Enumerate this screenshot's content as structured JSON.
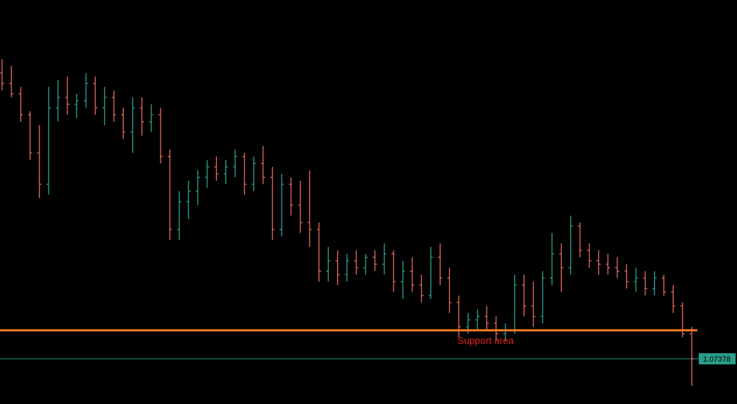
{
  "chart_data": {
    "type": "ohlc",
    "up_color": "#2a9d8a",
    "down_color": "#e0675c",
    "ylim": [
      1.0725,
      1.0841
    ],
    "open": [
      1.082,
      1.0817,
      1.0814,
      1.0808,
      1.0797,
      1.0788,
      1.081,
      1.0813,
      1.0811,
      1.0812,
      1.0817,
      1.081,
      1.0813,
      1.0808,
      1.0803,
      1.081,
      1.0806,
      1.0808,
      1.0796,
      1.0775,
      1.0783,
      1.0786,
      1.079,
      1.0793,
      1.0791,
      1.0793,
      1.0796,
      1.0788,
      1.0794,
      1.079,
      1.0775,
      1.0788,
      1.0782,
      1.0777,
      1.0775,
      1.0763,
      1.0766,
      1.0762,
      1.0766,
      1.0764,
      1.0767,
      1.0765,
      1.0768,
      1.076,
      1.0763,
      1.0759,
      1.0756,
      1.0767,
      1.0761,
      1.0754,
      1.0747,
      1.0749,
      1.075,
      1.0748,
      1.0745,
      1.0746,
      1.0759,
      1.0753,
      1.075,
      1.0761,
      1.0768,
      1.0764,
      1.0776,
      1.0769,
      1.0766,
      1.0765,
      1.0764,
      1.0763,
      1.076,
      1.0761,
      1.0758,
      1.0761,
      1.0757,
      1.0753,
      1.0745
    ],
    "high": [
      1.0824,
      1.0822,
      1.0816,
      1.0809,
      1.0805,
      1.0816,
      1.0818,
      1.0819,
      1.0814,
      1.082,
      1.0819,
      1.0816,
      1.0815,
      1.081,
      1.0813,
      1.0813,
      1.0811,
      1.081,
      1.0798,
      1.0786,
      1.0789,
      1.0792,
      1.0795,
      1.0796,
      1.0795,
      1.0798,
      1.0797,
      1.0796,
      1.0799,
      1.0793,
      1.0791,
      1.079,
      1.0789,
      1.0792,
      1.0777,
      1.077,
      1.0769,
      1.0768,
      1.0769,
      1.0768,
      1.0769,
      1.0771,
      1.0769,
      1.0766,
      1.0767,
      1.0762,
      1.077,
      1.0771,
      1.0764,
      1.0756,
      1.0751,
      1.0752,
      1.0753,
      1.075,
      1.0748,
      1.0762,
      1.0762,
      1.076,
      1.0763,
      1.0774,
      1.0771,
      1.0779,
      1.0777,
      1.0771,
      1.0769,
      1.0768,
      1.0767,
      1.0765,
      1.0764,
      1.0763,
      1.0763,
      1.0762,
      1.0759,
      1.0754,
      1.0747
    ],
    "low": [
      1.0815,
      1.0813,
      1.0806,
      1.0795,
      1.0784,
      1.0785,
      1.0806,
      1.0808,
      1.0807,
      1.081,
      1.0808,
      1.0805,
      1.0806,
      1.0801,
      1.0797,
      1.0802,
      1.0803,
      1.0794,
      1.0772,
      1.0772,
      1.0778,
      1.0782,
      1.0787,
      1.0789,
      1.0788,
      1.079,
      1.0785,
      1.0786,
      1.0788,
      1.0772,
      1.0773,
      1.0779,
      1.0774,
      1.077,
      1.076,
      1.076,
      1.0759,
      1.076,
      1.0762,
      1.0762,
      1.0763,
      1.0762,
      1.0757,
      1.0755,
      1.0757,
      1.0754,
      1.0755,
      1.0759,
      1.0751,
      1.0744,
      1.0745,
      1.0746,
      1.0746,
      1.0743,
      1.0743,
      1.0745,
      1.075,
      1.0747,
      1.0748,
      1.0759,
      1.0757,
      1.0762,
      1.0767,
      1.0764,
      1.0762,
      1.0762,
      1.0761,
      1.0758,
      1.0757,
      1.0756,
      1.0756,
      1.0756,
      1.0751,
      1.0744,
      1.073
    ],
    "close": [
      1.0817,
      1.0814,
      1.0808,
      1.0797,
      1.0788,
      1.081,
      1.0813,
      1.0811,
      1.0812,
      1.0817,
      1.081,
      1.0813,
      1.0808,
      1.0803,
      1.081,
      1.0806,
      1.0808,
      1.0796,
      1.0775,
      1.0783,
      1.0786,
      1.079,
      1.0793,
      1.0791,
      1.0793,
      1.0796,
      1.0788,
      1.0794,
      1.079,
      1.0775,
      1.0788,
      1.0782,
      1.0777,
      1.0775,
      1.0763,
      1.0766,
      1.0762,
      1.0766,
      1.0764,
      1.0767,
      1.0765,
      1.0768,
      1.076,
      1.0763,
      1.0759,
      1.0756,
      1.0767,
      1.0761,
      1.0754,
      1.0747,
      1.0749,
      1.075,
      1.0748,
      1.0745,
      1.0746,
      1.0759,
      1.0753,
      1.075,
      1.0761,
      1.0768,
      1.0764,
      1.0776,
      1.0769,
      1.0766,
      1.0765,
      1.0764,
      1.0763,
      1.076,
      1.0761,
      1.0758,
      1.0761,
      1.0757,
      1.0753,
      1.0745,
      1.07378
    ],
    "support_line": {
      "value": 1.0746,
      "label": "Support area",
      "color": "#ff7f27",
      "label_color": "#e8221e"
    },
    "current_price": 1.07378,
    "current_price_color": "#2a9d8a"
  }
}
